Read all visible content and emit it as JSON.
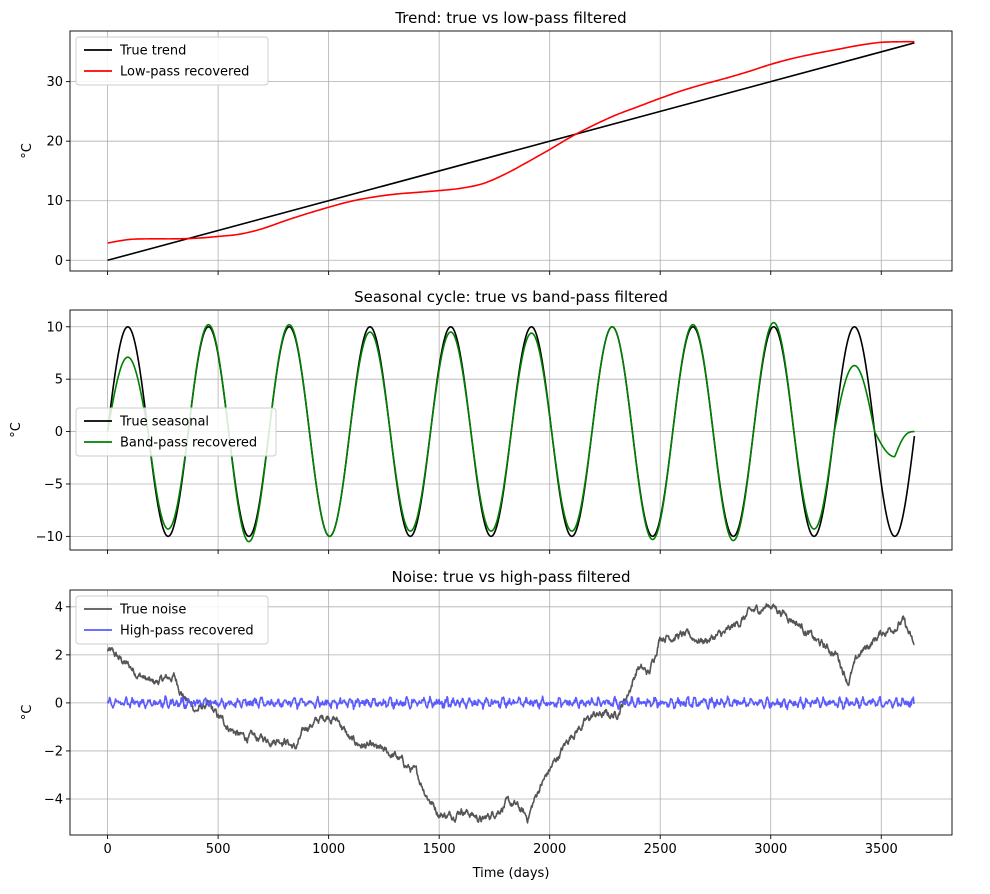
{
  "chart_data": [
    {
      "type": "line",
      "title": "Trend: true vs low-pass filtered",
      "ylabel": "°C",
      "xlabel": "",
      "xlim": [
        -170,
        3820
      ],
      "ylim": [
        -1.8,
        38.5
      ],
      "xticks": [
        0,
        500,
        1000,
        1500,
        2000,
        2500,
        3000,
        3500
      ],
      "yticks": [
        0,
        10,
        20,
        30
      ],
      "show_xtick_labels": false,
      "grid": true,
      "legend_position": "upper left",
      "series": [
        {
          "name": "True trend",
          "color": "#000000",
          "kind": "straight",
          "x": [
            0,
            3650
          ],
          "y": [
            0,
            36.5
          ]
        },
        {
          "name": "Low-pass recovered",
          "color": "#ff0000",
          "kind": "smooth",
          "x": [
            0,
            100,
            200,
            300,
            400,
            500,
            600,
            700,
            800,
            900,
            1000,
            1100,
            1200,
            1300,
            1400,
            1500,
            1600,
            1700,
            1800,
            1900,
            2000,
            2100,
            2200,
            2300,
            2400,
            2500,
            2600,
            2700,
            2800,
            2900,
            3000,
            3100,
            3200,
            3300,
            3400,
            3500,
            3600,
            3650
          ],
          "y": [
            2.9,
            3.5,
            3.6,
            3.6,
            3.7,
            4.0,
            4.4,
            5.3,
            6.6,
            7.8,
            8.9,
            9.9,
            10.6,
            11.1,
            11.4,
            11.7,
            12.1,
            12.9,
            14.5,
            16.5,
            18.6,
            20.8,
            22.7,
            24.4,
            25.8,
            27.2,
            28.5,
            29.6,
            30.6,
            31.7,
            32.9,
            33.9,
            34.7,
            35.4,
            36.1,
            36.6,
            36.7,
            36.7
          ]
        }
      ]
    },
    {
      "type": "line",
      "title": "Seasonal cycle: true vs band-pass filtered",
      "ylabel": "°C",
      "xlabel": "",
      "xlim": [
        -170,
        3820
      ],
      "ylim": [
        -11.3,
        11.6
      ],
      "xticks": [
        0,
        500,
        1000,
        1500,
        2000,
        2500,
        3000,
        3500
      ],
      "yticks": [
        -10,
        -5,
        0,
        5,
        10
      ],
      "show_xtick_labels": false,
      "grid": true,
      "legend_position": "center left",
      "series": [
        {
          "name": "True seasonal",
          "color": "#000000",
          "kind": "sine",
          "amplitude": 10,
          "period": 365.25,
          "x_start": 0,
          "x_end": 3650
        },
        {
          "name": "Band-pass recovered",
          "color": "#008000",
          "kind": "sine_envelope",
          "period": 365.25,
          "x_start": 0,
          "x_end": 3650,
          "peaks": [
            7.1,
            10.2,
            10.2,
            9.5,
            9.5,
            9.4,
            10.0,
            10.2,
            10.4,
            6.3
          ],
          "troughs": [
            -9.3,
            -10.5,
            -10.0,
            -9.5,
            -9.5,
            -9.5,
            -10.3,
            -10.4,
            -9.3,
            -2.4
          ],
          "end_value": 0
        }
      ]
    },
    {
      "type": "line",
      "title": "Noise: true vs high-pass filtered",
      "ylabel": "°C",
      "xlabel": "Time (days)",
      "xlim": [
        -170,
        3820
      ],
      "ylim": [
        -5.5,
        4.7
      ],
      "xticks": [
        0,
        500,
        1000,
        1500,
        2000,
        2500,
        3000,
        3500
      ],
      "yticks": [
        -4,
        -2,
        0,
        2,
        4
      ],
      "show_xtick_labels": true,
      "grid": true,
      "legend_position": "upper left",
      "series": [
        {
          "name": "True noise",
          "color": "#555555",
          "kind": "noisy",
          "x": [
            0,
            100,
            200,
            300,
            350,
            400,
            450,
            500,
            600,
            700,
            800,
            850,
            900,
            1000,
            1050,
            1100,
            1200,
            1300,
            1400,
            1450,
            1500,
            1550,
            1600,
            1700,
            1800,
            1850,
            1900,
            1950,
            2000,
            2100,
            2200,
            2300,
            2350,
            2400,
            2450,
            2500,
            2600,
            2700,
            2800,
            2900,
            3000,
            3050,
            3100,
            3150,
            3200,
            3300,
            3350,
            3400,
            3500,
            3600,
            3650
          ],
          "y": [
            2.2,
            1.5,
            0.8,
            1.1,
            0.2,
            -0.3,
            -0.1,
            -0.6,
            -1.4,
            -1.5,
            -1.5,
            -1.9,
            -1.0,
            -0.5,
            -0.8,
            -1.6,
            -1.9,
            -2.2,
            -3.0,
            -3.9,
            -4.6,
            -4.7,
            -4.4,
            -4.9,
            -4.2,
            -4.3,
            -4.8,
            -3.6,
            -2.8,
            -1.3,
            -0.5,
            -0.5,
            0.3,
            1.5,
            1.2,
            2.8,
            2.8,
            2.6,
            2.9,
            3.7,
            4.1,
            3.8,
            3.5,
            3.1,
            2.6,
            2.0,
            0.9,
            2.0,
            2.9,
            3.4,
            2.3
          ],
          "jitter": 0.22
        },
        {
          "name": "High-pass recovered",
          "color": "#5a5aff",
          "kind": "oscillating_noise",
          "x_start": 0,
          "x_end": 3650,
          "amplitude": 0.32,
          "center": 0
        }
      ]
    }
  ]
}
